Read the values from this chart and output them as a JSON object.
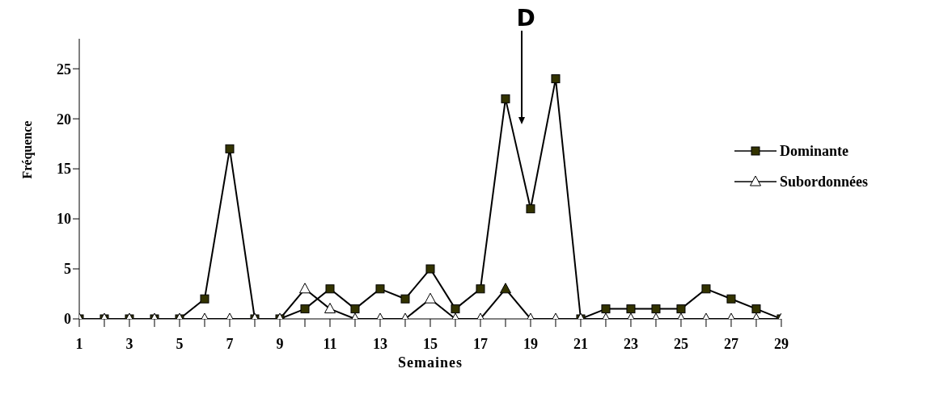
{
  "chart_data": {
    "type": "line",
    "xlabel": "Semaines",
    "ylabel": "Fréquence",
    "x": [
      1,
      2,
      3,
      4,
      5,
      6,
      7,
      8,
      9,
      10,
      11,
      12,
      13,
      14,
      15,
      16,
      17,
      18,
      19,
      20,
      21,
      22,
      23,
      24,
      25,
      26,
      27,
      28,
      29
    ],
    "series": [
      {
        "name": "Dominante",
        "color": "#000000",
        "marker": "square",
        "colors": [
          "#333300",
          "#333300",
          "#333300",
          "#333300",
          "#333300",
          "#333300",
          "#333300",
          "#333300",
          "#333300",
          "#333300",
          "#333300",
          "#333300",
          "#333300",
          "#333300",
          "#333300",
          "#333300",
          "#333300",
          "#333300",
          "#333300",
          "#333300",
          "#333300",
          "#333300",
          "#333300",
          "#333300",
          "#333300",
          "#333300",
          "#333300",
          "#333300",
          "#333300"
        ],
        "values": [
          0,
          0,
          0,
          0,
          0,
          2,
          17,
          0,
          0,
          1,
          3,
          1,
          3,
          2,
          5,
          1,
          3,
          22,
          11,
          24,
          0,
          1,
          1,
          1,
          1,
          3,
          2,
          1,
          0
        ]
      },
      {
        "name": "Subordonnées",
        "color": "#000000",
        "marker": "triangle",
        "colors": [
          "#ffffff",
          "#ffffff",
          "#ffffff",
          "#ffffff",
          "#ffffff",
          "#ffffff",
          "#ffffff",
          "#ffffff",
          "#ffffff",
          "#ffffff",
          "#ffffff",
          "#ffffff",
          "#ffffff",
          "#ffffff",
          "#ffffff",
          "#ffffff",
          "#ffffff",
          "#333300",
          "#ffffff",
          "#ffffff",
          "#ffffff",
          "#ffffff",
          "#ffffff",
          "#ffffff",
          "#ffffff",
          "#ffffff",
          "#ffffff",
          "#ffffff",
          "#ffffff"
        ],
        "values": [
          0,
          0,
          0,
          0,
          0,
          0,
          0,
          0,
          0,
          3,
          1,
          0,
          0,
          0,
          2,
          0,
          0,
          3,
          0,
          0,
          0,
          0,
          0,
          0,
          0,
          0,
          0,
          0,
          0
        ]
      }
    ],
    "xlim": [
      1,
      29
    ],
    "xticks": [
      1,
      {
        "value": 2,
        "label": null
      },
      3,
      {
        "value": 4,
        "label": null
      },
      5,
      {
        "value": 6,
        "label": null
      },
      7,
      {
        "value": 8,
        "label": null
      },
      9,
      {
        "value": 10,
        "label": null
      },
      11,
      {
        "value": 12,
        "label": null
      },
      13,
      {
        "value": 14,
        "label": null
      },
      15,
      {
        "value": 16,
        "label": null
      },
      17,
      {
        "value": 18,
        "label": null
      },
      19,
      {
        "value": 20,
        "label": null
      },
      21,
      {
        "value": 22,
        "label": null
      },
      23,
      {
        "value": 24,
        "label": null
      },
      25,
      {
        "value": 26,
        "label": null
      },
      27,
      {
        "value": 28,
        "label": null
      },
      29
    ],
    "ylim": [
      0,
      28
    ],
    "yticks": [
      0,
      5,
      10,
      15,
      20,
      25
    ],
    "grid": false,
    "legend": "right",
    "line_style": "solid",
    "annotations": [
      "D"
    ]
  }
}
